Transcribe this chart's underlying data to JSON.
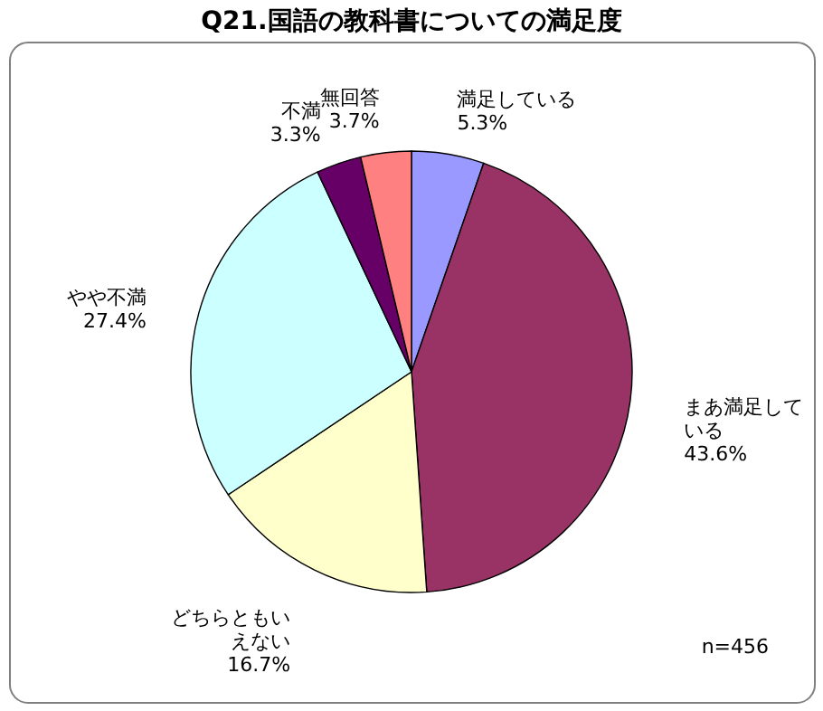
{
  "chart_data": {
    "type": "pie",
    "title": "Q21.国語の教科書についての満足度",
    "categories": [
      "満足している",
      "まあ満足している",
      "どちらともいえない",
      "やや不満",
      "不満",
      "無回答"
    ],
    "values": [
      5.3,
      43.6,
      16.7,
      27.4,
      3.3,
      3.7
    ],
    "colors": [
      "#9999ff",
      "#993366",
      "#ffffcc",
      "#ccffff",
      "#660066",
      "#ff8080"
    ],
    "value_labels": [
      "5.3%",
      "43.6%",
      "16.7%",
      "27.4%",
      "3.3%",
      "3.7%"
    ],
    "annotations": [
      "n=456"
    ],
    "legend": false
  }
}
